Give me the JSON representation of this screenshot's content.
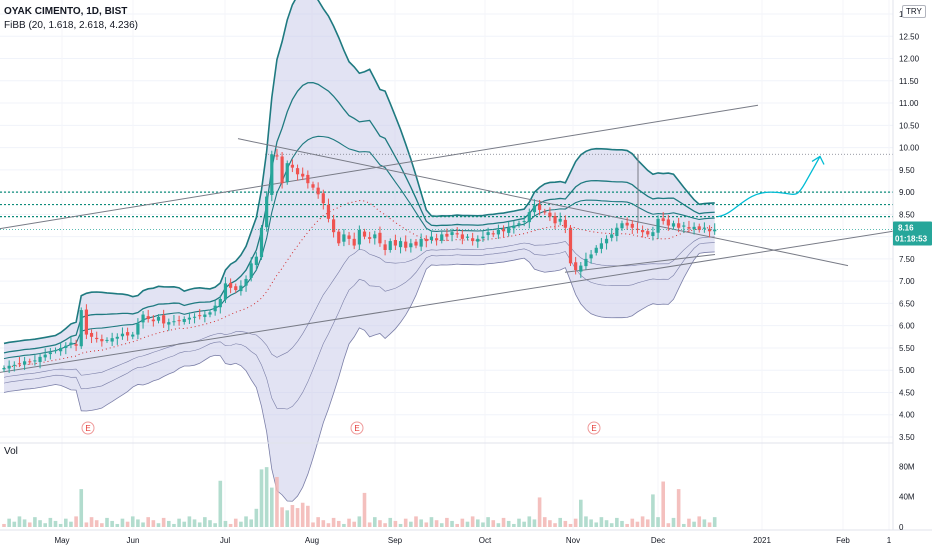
{
  "header": {
    "symbol_line": "OYAK CIMENTO, 1D, BIST",
    "indicator_line": "FiBB (20, 1.618, 2.618, 4.236)",
    "volume_label": "Vol"
  },
  "currency_badge": "TRY",
  "price_tag": {
    "value": "8.16",
    "countdown": "01:18:53",
    "color": "#26a69a"
  },
  "earnings_marker_label": "E",
  "colors": {
    "up": "#26a69a",
    "down": "#ef5350",
    "band_line": "#1f7a80",
    "band_fill": "#c5c8e8",
    "level": "#0d8c7a",
    "trend": "#787b86",
    "arrow": "#00bcd4"
  },
  "chart_data": [
    {
      "type": "candlestick",
      "title": "OYAK CIMENTO, 1D, BIST",
      "indicator": "FiBB (20, 1.618, 2.618, 4.236)",
      "ylim": [
        3.5,
        13.0
      ],
      "y_ticks": [
        "3.50",
        "4.00",
        "4.50",
        "5.00",
        "5.50",
        "6.00",
        "6.50",
        "7.00",
        "7.50",
        "8.00",
        "8.50",
        "9.00",
        "9.50",
        "10.00",
        "10.50",
        "11.00",
        "11.50",
        "12.00",
        "12.50",
        "13.00"
      ],
      "x_ticks": [
        "May",
        "Jun",
        "Jul",
        "Aug",
        "Sep",
        "Oct",
        "Nov",
        "Dec",
        "2021",
        "Feb",
        "1"
      ],
      "last_price": 8.16,
      "close_series": [
        5.05,
        5.1,
        5.12,
        5.15,
        5.2,
        5.18,
        5.22,
        5.3,
        5.35,
        5.4,
        5.45,
        5.5,
        5.55,
        5.62,
        5.55,
        6.35,
        5.8,
        5.75,
        5.7,
        5.65,
        5.68,
        5.72,
        5.75,
        5.82,
        5.78,
        5.8,
        6.05,
        6.25,
        6.15,
        6.1,
        6.2,
        6.05,
        6.08,
        6.1,
        6.12,
        6.15,
        6.18,
        6.2,
        6.22,
        6.25,
        6.3,
        6.45,
        6.6,
        6.95,
        6.85,
        6.8,
        6.9,
        7.05,
        7.4,
        7.55,
        8.2,
        8.9,
        9.85,
        9.8,
        9.2,
        9.65,
        9.55,
        9.4,
        9.35,
        9.2,
        9.1,
        8.95,
        8.75,
        8.4,
        8.1,
        7.85,
        8.05,
        7.95,
        7.8,
        8.15,
        8.0,
        7.95,
        8.05,
        7.85,
        7.7,
        7.9,
        7.8,
        7.9,
        7.75,
        7.85,
        7.8,
        7.95,
        7.9,
        8.0,
        7.92,
        8.05,
        8.0,
        8.1,
        8.05,
        7.95,
        8.0,
        7.9,
        7.95,
        8.0,
        8.1,
        8.05,
        8.15,
        8.12,
        8.2,
        8.25,
        8.3,
        8.35,
        8.55,
        8.7,
        8.6,
        8.55,
        8.45,
        8.3,
        8.4,
        8.2,
        7.4,
        7.25,
        7.35,
        7.5,
        7.6,
        7.75,
        7.85,
        7.95,
        8.05,
        8.2,
        8.3,
        8.25,
        8.2,
        8.15,
        8.1,
        8.05,
        8.1,
        8.4,
        8.35,
        8.25,
        8.3,
        8.2,
        8.25,
        8.18,
        8.22,
        8.15,
        8.2,
        8.12,
        8.16
      ],
      "overlays": {
        "horizontal_levels": [
          9.85,
          9.0,
          8.72,
          8.45
        ],
        "projection": {
          "target": 9.8
        }
      }
    },
    {
      "type": "bar",
      "title": "Vol",
      "ylabel": "Vol",
      "y_ticks": [
        "80M",
        "40M",
        "0"
      ],
      "ylim": [
        0,
        95
      ]
    }
  ]
}
